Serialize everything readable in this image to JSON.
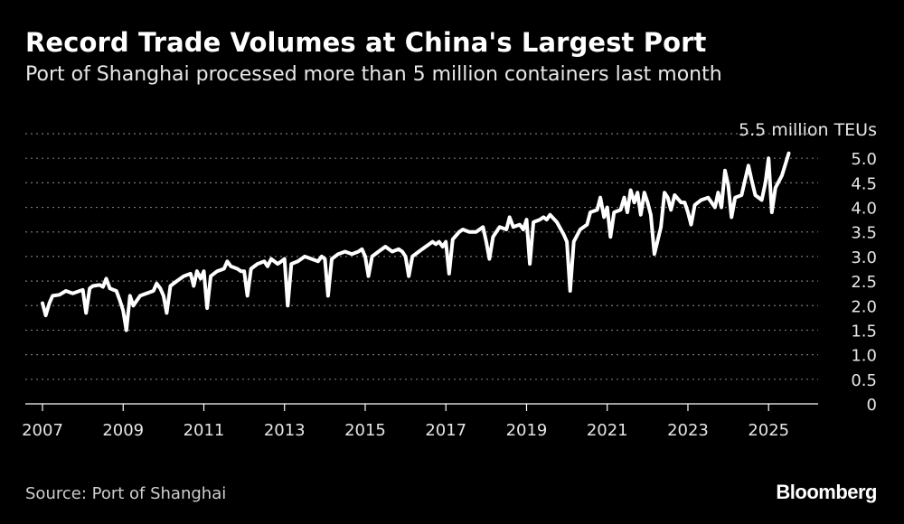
{
  "header": {
    "title": "Record Trade Volumes at China's Largest Port",
    "subtitle": "Port of Shanghai processed more than 5 million containers last month"
  },
  "footer": {
    "source": "Source: Port of Shanghai",
    "brand": "Bloomberg"
  },
  "colors": {
    "background": "#000000",
    "line": "#ffffff",
    "grid": "#777777",
    "text": "#ffffff"
  },
  "chart_data": {
    "type": "line",
    "title": "Record Trade Volumes at China's Largest Port",
    "subtitle": "Port of Shanghai processed more than 5 million containers last month",
    "unit_label": "5.5 million TEUs",
    "xlabel": "",
    "ylabel": "",
    "ylim": [
      0,
      5.5
    ],
    "xlim": [
      2007,
      2026.3
    ],
    "y_ticks": [
      0,
      0.5,
      1.0,
      1.5,
      2.0,
      2.5,
      3.0,
      3.5,
      4.0,
      4.5,
      5.0
    ],
    "y_tick_labels": [
      "0",
      "0.5",
      "1.0",
      "1.5",
      "2.0",
      "2.5",
      "3.0",
      "3.5",
      "4.0",
      "4.5",
      "5.0"
    ],
    "x_ticks": [
      2007,
      2009,
      2011,
      2013,
      2015,
      2017,
      2019,
      2021,
      2023,
      2025
    ],
    "x_tick_labels": [
      "2007",
      "2009",
      "2011",
      "2013",
      "2015",
      "2017",
      "2019",
      "2021",
      "2023",
      "2025"
    ],
    "grid": "horizontal dotted",
    "series": [
      {
        "values": [
          [
            2007.0,
            2.05
          ],
          [
            2007.08,
            1.8
          ],
          [
            2007.17,
            2.05
          ],
          [
            2007.25,
            2.2
          ],
          [
            2007.42,
            2.22
          ],
          [
            2007.58,
            2.3
          ],
          [
            2007.75,
            2.25
          ],
          [
            2007.92,
            2.3
          ],
          [
            2008.0,
            2.32
          ],
          [
            2008.08,
            1.85
          ],
          [
            2008.17,
            2.35
          ],
          [
            2008.25,
            2.4
          ],
          [
            2008.42,
            2.42
          ],
          [
            2008.5,
            2.38
          ],
          [
            2008.58,
            2.55
          ],
          [
            2008.67,
            2.35
          ],
          [
            2008.83,
            2.3
          ],
          [
            2008.92,
            2.1
          ],
          [
            2009.0,
            1.9
          ],
          [
            2009.08,
            1.5
          ],
          [
            2009.17,
            2.2
          ],
          [
            2009.25,
            2.0
          ],
          [
            2009.42,
            2.2
          ],
          [
            2009.58,
            2.25
          ],
          [
            2009.75,
            2.3
          ],
          [
            2009.83,
            2.45
          ],
          [
            2009.92,
            2.35
          ],
          [
            2010.0,
            2.2
          ],
          [
            2010.08,
            1.85
          ],
          [
            2010.17,
            2.4
          ],
          [
            2010.33,
            2.5
          ],
          [
            2010.5,
            2.6
          ],
          [
            2010.67,
            2.65
          ],
          [
            2010.75,
            2.4
          ],
          [
            2010.83,
            2.7
          ],
          [
            2010.92,
            2.55
          ],
          [
            2011.0,
            2.7
          ],
          [
            2011.08,
            1.95
          ],
          [
            2011.17,
            2.6
          ],
          [
            2011.33,
            2.7
          ],
          [
            2011.5,
            2.75
          ],
          [
            2011.58,
            2.9
          ],
          [
            2011.67,
            2.8
          ],
          [
            2011.83,
            2.75
          ],
          [
            2011.92,
            2.7
          ],
          [
            2012.0,
            2.7
          ],
          [
            2012.08,
            2.2
          ],
          [
            2012.17,
            2.75
          ],
          [
            2012.33,
            2.85
          ],
          [
            2012.5,
            2.9
          ],
          [
            2012.58,
            2.8
          ],
          [
            2012.67,
            2.95
          ],
          [
            2012.83,
            2.85
          ],
          [
            2012.92,
            2.9
          ],
          [
            2013.0,
            2.95
          ],
          [
            2013.08,
            2.0
          ],
          [
            2013.17,
            2.85
          ],
          [
            2013.33,
            2.9
          ],
          [
            2013.5,
            3.0
          ],
          [
            2013.67,
            2.95
          ],
          [
            2013.83,
            2.9
          ],
          [
            2013.92,
            3.0
          ],
          [
            2014.0,
            2.95
          ],
          [
            2014.08,
            2.2
          ],
          [
            2014.17,
            2.95
          ],
          [
            2014.33,
            3.05
          ],
          [
            2014.5,
            3.1
          ],
          [
            2014.67,
            3.05
          ],
          [
            2014.83,
            3.1
          ],
          [
            2014.92,
            3.15
          ],
          [
            2015.0,
            3.0
          ],
          [
            2015.08,
            2.6
          ],
          [
            2015.17,
            3.0
          ],
          [
            2015.33,
            3.1
          ],
          [
            2015.5,
            3.2
          ],
          [
            2015.67,
            3.1
          ],
          [
            2015.83,
            3.15
          ],
          [
            2015.92,
            3.1
          ],
          [
            2016.0,
            3.0
          ],
          [
            2016.08,
            2.6
          ],
          [
            2016.17,
            3.0
          ],
          [
            2016.33,
            3.1
          ],
          [
            2016.5,
            3.2
          ],
          [
            2016.67,
            3.3
          ],
          [
            2016.75,
            3.25
          ],
          [
            2016.83,
            3.3
          ],
          [
            2016.92,
            3.2
          ],
          [
            2017.0,
            3.3
          ],
          [
            2017.08,
            2.65
          ],
          [
            2017.17,
            3.35
          ],
          [
            2017.33,
            3.5
          ],
          [
            2017.42,
            3.55
          ],
          [
            2017.58,
            3.5
          ],
          [
            2017.75,
            3.5
          ],
          [
            2017.92,
            3.6
          ],
          [
            2018.0,
            3.3
          ],
          [
            2018.08,
            2.95
          ],
          [
            2018.17,
            3.4
          ],
          [
            2018.33,
            3.6
          ],
          [
            2018.5,
            3.55
          ],
          [
            2018.58,
            3.8
          ],
          [
            2018.67,
            3.6
          ],
          [
            2018.83,
            3.65
          ],
          [
            2018.92,
            3.55
          ],
          [
            2019.0,
            3.75
          ],
          [
            2019.08,
            2.85
          ],
          [
            2019.17,
            3.7
          ],
          [
            2019.33,
            3.75
          ],
          [
            2019.42,
            3.8
          ],
          [
            2019.5,
            3.75
          ],
          [
            2019.58,
            3.85
          ],
          [
            2019.75,
            3.7
          ],
          [
            2019.92,
            3.45
          ],
          [
            2020.0,
            3.3
          ],
          [
            2020.08,
            2.3
          ],
          [
            2020.17,
            3.3
          ],
          [
            2020.33,
            3.55
          ],
          [
            2020.5,
            3.65
          ],
          [
            2020.58,
            3.9
          ],
          [
            2020.75,
            3.95
          ],
          [
            2020.83,
            4.2
          ],
          [
            2020.92,
            3.8
          ],
          [
            2021.0,
            4.0
          ],
          [
            2021.08,
            3.4
          ],
          [
            2021.17,
            3.9
          ],
          [
            2021.33,
            3.95
          ],
          [
            2021.42,
            4.2
          ],
          [
            2021.5,
            3.9
          ],
          [
            2021.58,
            4.35
          ],
          [
            2021.67,
            4.1
          ],
          [
            2021.75,
            4.3
          ],
          [
            2021.83,
            3.85
          ],
          [
            2021.92,
            4.3
          ],
          [
            2022.0,
            4.1
          ],
          [
            2022.08,
            3.85
          ],
          [
            2022.17,
            3.05
          ],
          [
            2022.33,
            3.6
          ],
          [
            2022.42,
            4.3
          ],
          [
            2022.5,
            4.2
          ],
          [
            2022.58,
            3.95
          ],
          [
            2022.67,
            4.25
          ],
          [
            2022.83,
            4.1
          ],
          [
            2022.92,
            4.1
          ],
          [
            2023.0,
            3.9
          ],
          [
            2023.08,
            3.65
          ],
          [
            2023.17,
            4.05
          ],
          [
            2023.33,
            4.15
          ],
          [
            2023.5,
            4.2
          ],
          [
            2023.67,
            4.0
          ],
          [
            2023.75,
            4.3
          ],
          [
            2023.83,
            4.0
          ],
          [
            2023.92,
            4.75
          ],
          [
            2024.0,
            4.45
          ],
          [
            2024.08,
            3.8
          ],
          [
            2024.17,
            4.2
          ],
          [
            2024.33,
            4.25
          ],
          [
            2024.5,
            4.85
          ],
          [
            2024.58,
            4.55
          ],
          [
            2024.67,
            4.25
          ],
          [
            2024.83,
            4.15
          ],
          [
            2024.92,
            4.5
          ],
          [
            2025.0,
            5.0
          ],
          [
            2025.08,
            3.9
          ],
          [
            2025.17,
            4.4
          ],
          [
            2025.33,
            4.65
          ],
          [
            2025.5,
            5.1
          ]
        ]
      }
    ]
  }
}
